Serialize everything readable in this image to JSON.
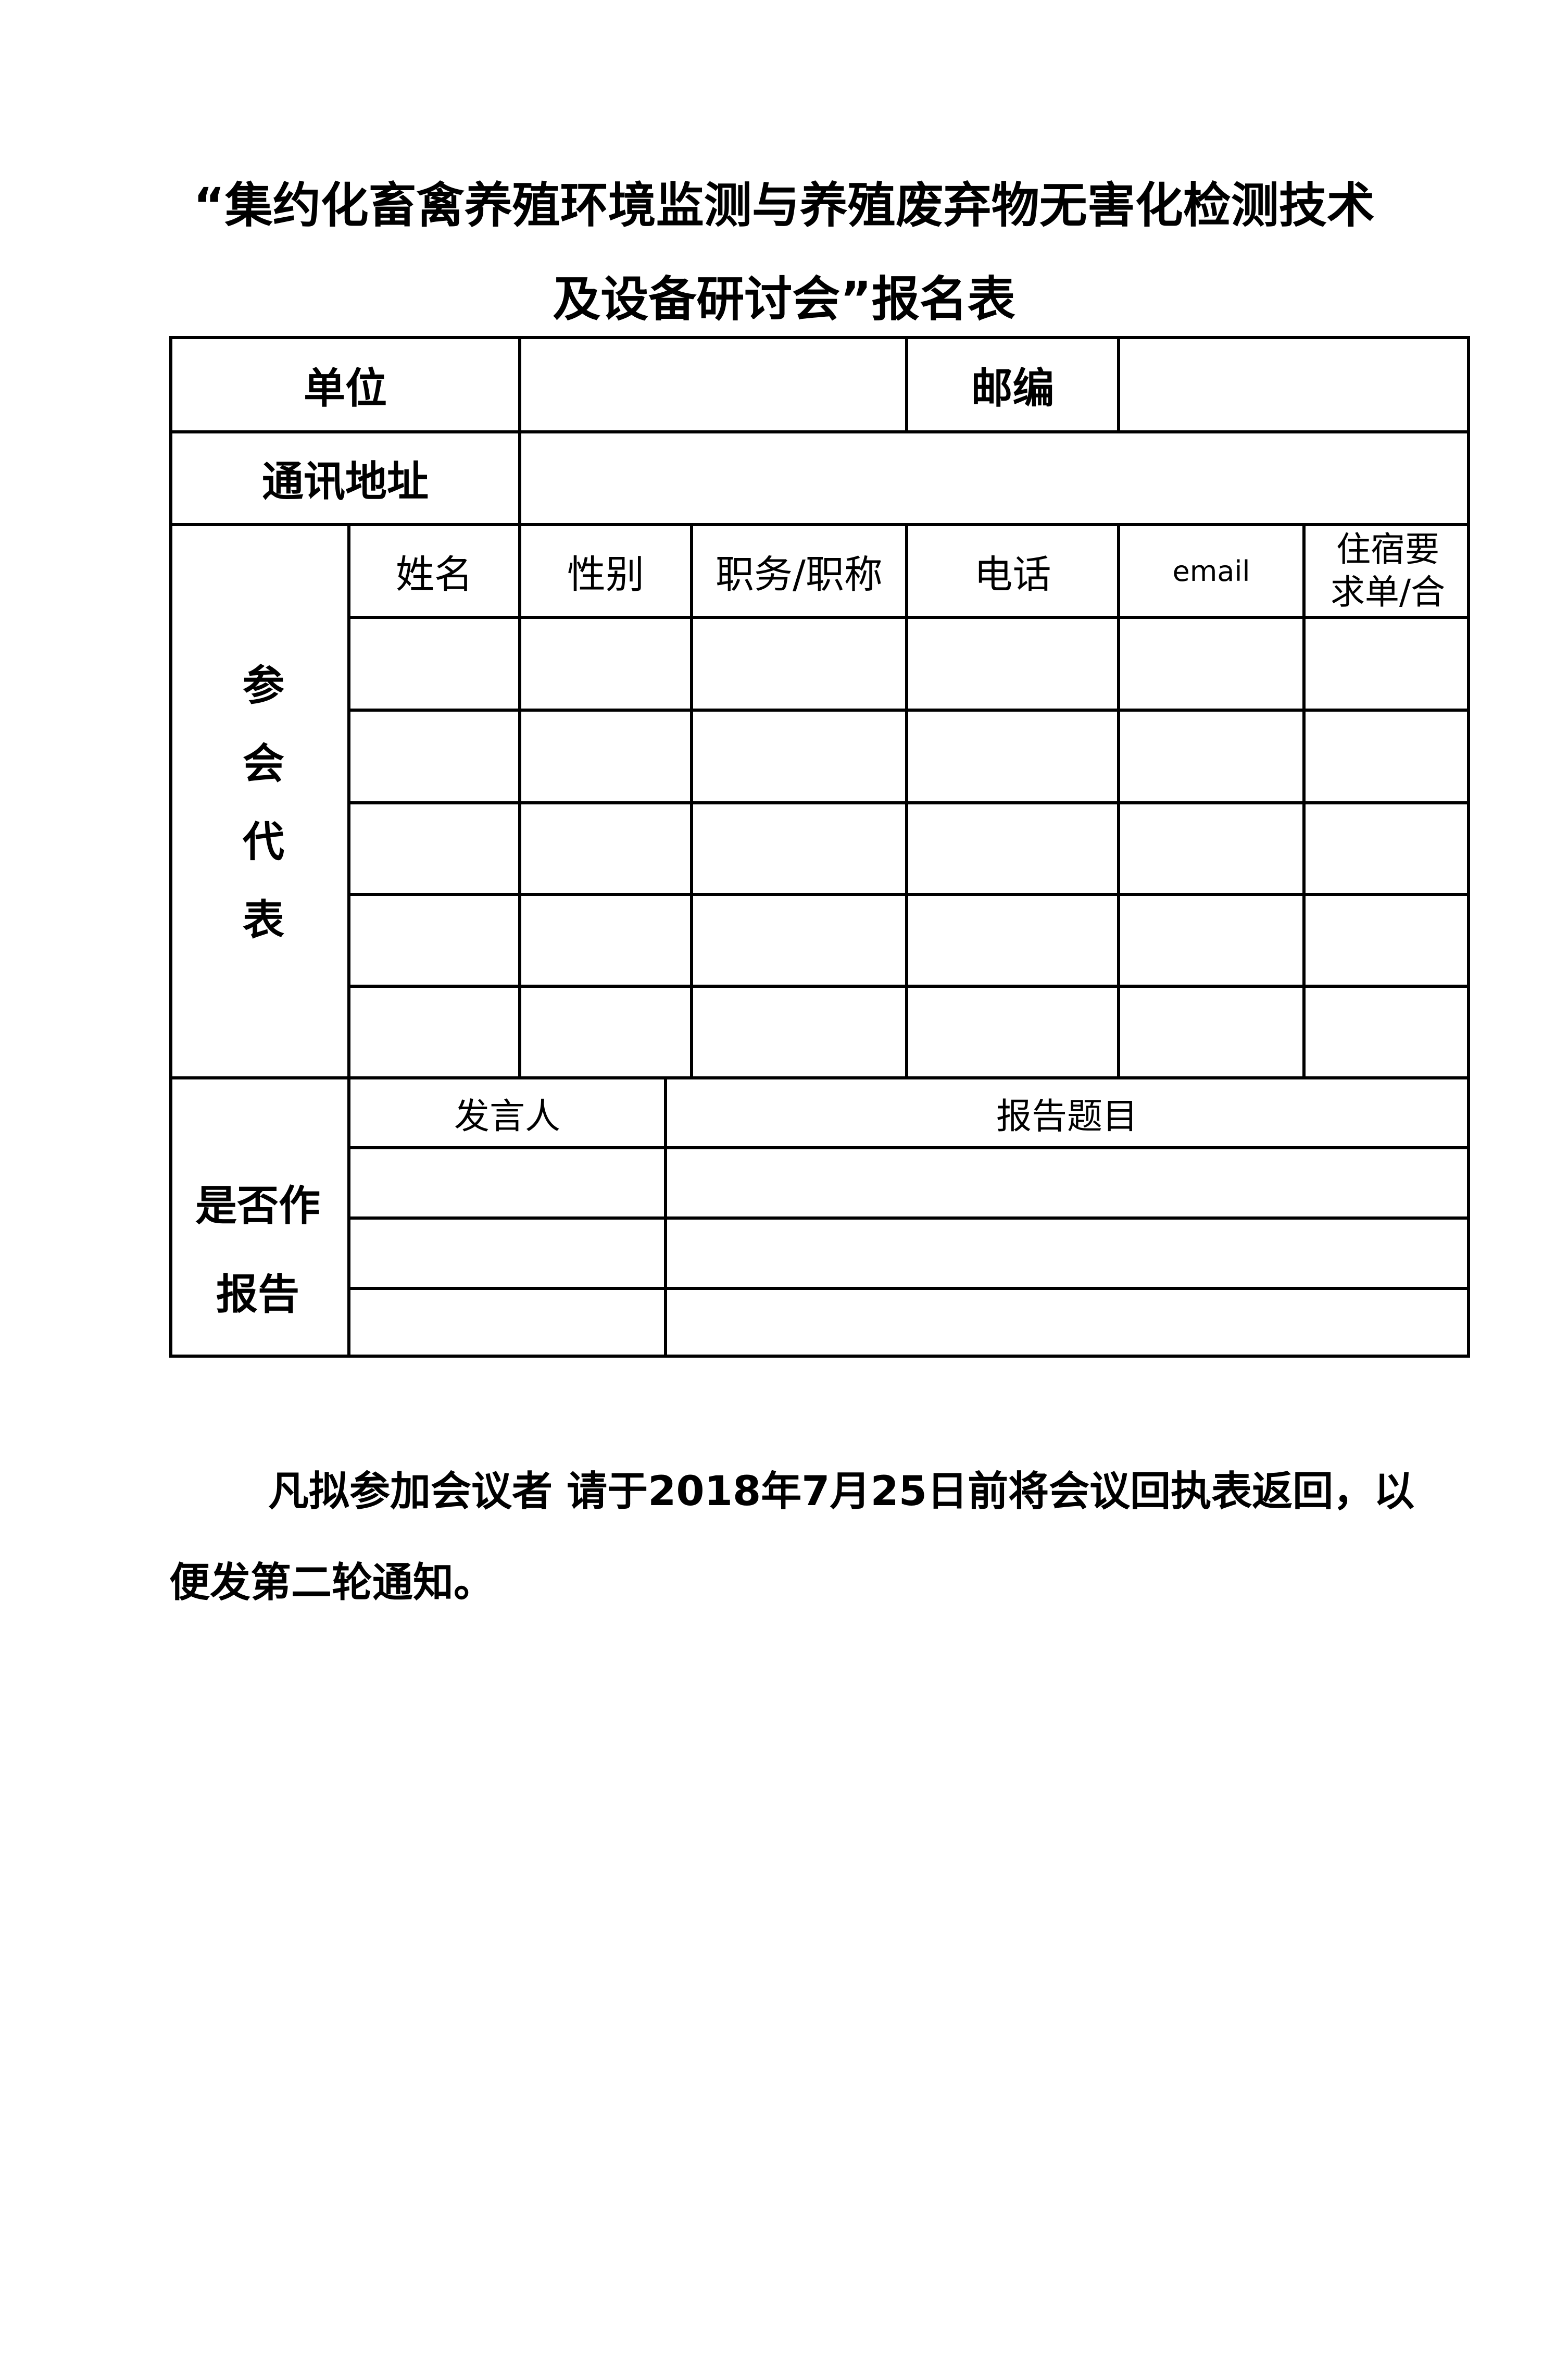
{
  "title": {
    "line1": "“集约化畜禽养殖环境监测与养殖废弃物无害化检测技术",
    "line2": "及设备研讨会”报名表"
  },
  "form": {
    "unit_label": "单位",
    "postcode_label": "邮编",
    "address_label": "通讯地址",
    "delegates_label": "参会代表",
    "delegate_columns": [
      "姓名",
      "性别",
      "职务/职称",
      "电话",
      "email",
      "住宿要求单/合"
    ],
    "report_label": "是否作报告",
    "report_columns": [
      "发言人",
      "报告题目"
    ]
  },
  "note": {
    "line1": "凡拟参加会议者  请于2018年7月25日前将会议回执表返回，以",
    "line2": "便发第二轮通知。"
  }
}
